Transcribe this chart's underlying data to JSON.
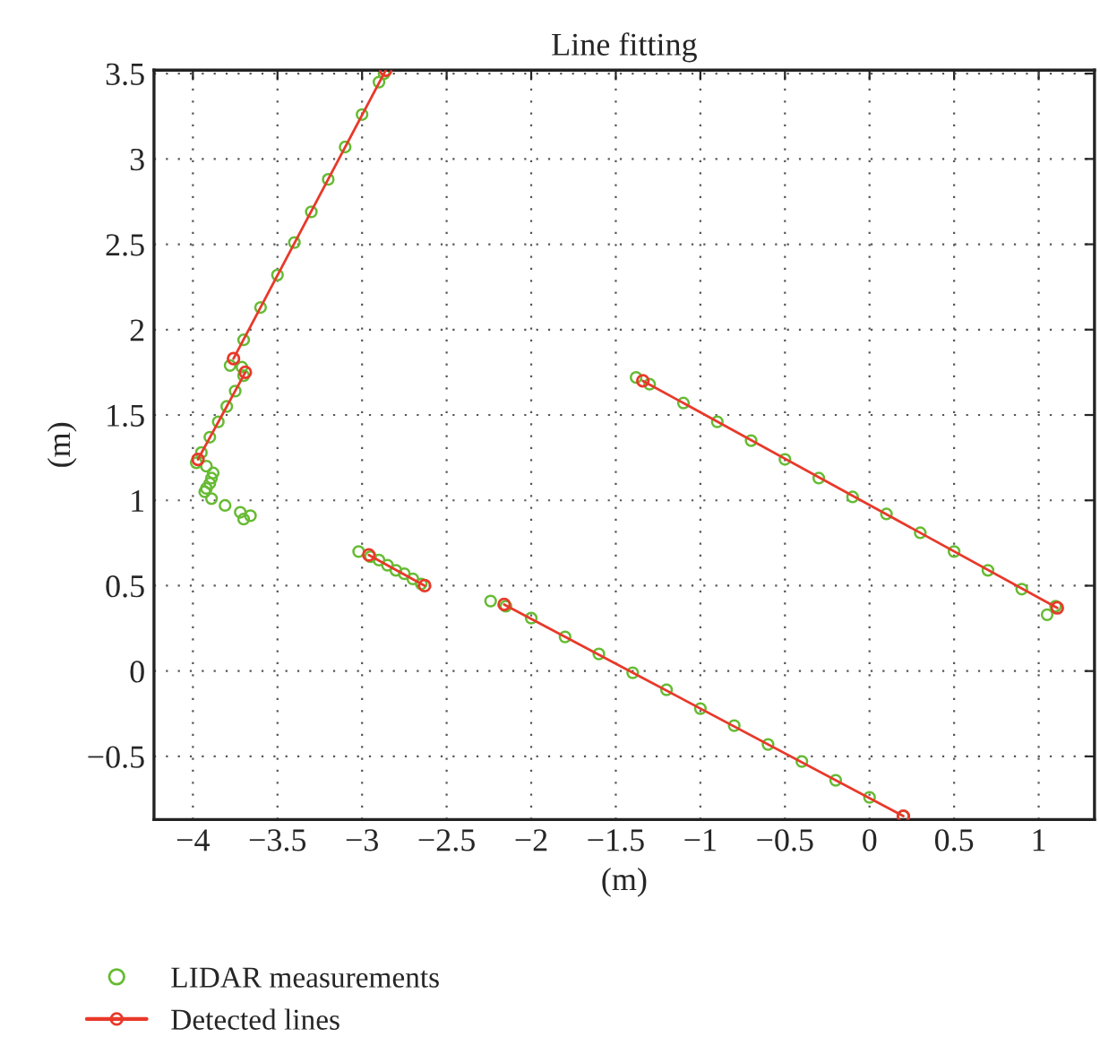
{
  "chart_data": {
    "type": "scatter",
    "title": "Line fitting",
    "xlabel": "(m)",
    "ylabel": "(m)",
    "series": [
      {
        "name": "LIDAR measurements",
        "color": "#66bb33",
        "marker": "circle",
        "x": [
          -3.78,
          -3.7,
          -3.6,
          -3.5,
          -3.4,
          -3.3,
          -3.2,
          -3.1,
          -3.0,
          -2.9,
          -2.87,
          -3.71,
          -3.98,
          -3.95,
          -3.9,
          -3.85,
          -3.8,
          -3.75,
          -3.7,
          -3.92,
          -3.88,
          -3.89,
          -3.9,
          -3.92,
          -3.93,
          -3.89,
          -3.81,
          -3.72,
          -3.7,
          -3.66,
          -3.02,
          -2.95,
          -2.9,
          -2.85,
          -2.8,
          -2.75,
          -2.7,
          -2.65,
          -2.24,
          -2.15,
          -2.0,
          -1.8,
          -1.6,
          -1.4,
          -1.2,
          -1.0,
          -0.8,
          -0.6,
          -0.4,
          -0.2,
          0.0,
          0.2,
          -1.38,
          -1.3,
          -1.1,
          -0.9,
          -0.7,
          -0.5,
          -0.3,
          -0.1,
          0.1,
          0.3,
          0.5,
          0.7,
          0.9,
          1.1,
          1.05
        ],
        "values": [
          1.79,
          1.94,
          2.13,
          2.32,
          2.51,
          2.69,
          2.88,
          3.07,
          3.26,
          3.45,
          3.5,
          1.78,
          1.22,
          1.28,
          1.37,
          1.46,
          1.55,
          1.64,
          1.73,
          1.2,
          1.16,
          1.13,
          1.1,
          1.07,
          1.05,
          1.01,
          0.97,
          0.93,
          0.89,
          0.91,
          0.7,
          0.67,
          0.65,
          0.62,
          0.59,
          0.57,
          0.54,
          0.51,
          0.41,
          0.38,
          0.31,
          0.2,
          0.1,
          -0.01,
          -0.11,
          -0.22,
          -0.32,
          -0.43,
          -0.53,
          -0.64,
          -0.74,
          -0.85,
          1.72,
          1.68,
          1.57,
          1.46,
          1.35,
          1.24,
          1.13,
          1.02,
          0.92,
          0.81,
          0.7,
          0.59,
          0.48,
          0.38,
          0.33
        ]
      },
      {
        "name": "Detected lines",
        "type": "line",
        "color": "#e8392a",
        "marker": "circle",
        "line_style": "solid",
        "x": [
          -3.76,
          -2.86,
          null,
          -3.97,
          -3.69,
          null,
          -2.96,
          -2.63,
          null,
          -2.16,
          0.2,
          null,
          -1.34,
          1.11
        ],
        "values": [
          1.83,
          3.52,
          null,
          1.24,
          1.75,
          null,
          0.68,
          0.5,
          null,
          0.39,
          -0.85,
          null,
          1.7,
          0.37
        ]
      }
    ],
    "xlim": [
      -4.23,
      1.33
    ],
    "xticks": [
      -4,
      -3.5,
      -3,
      -2.5,
      -2,
      -1.5,
      -1,
      -0.5,
      0,
      0.5,
      1
    ],
    "ylim": [
      -0.87,
      3.52
    ],
    "yticks": [
      -0.5,
      0,
      0.5,
      1,
      1.5,
      2,
      2.5,
      3,
      3.5
    ],
    "grid": true,
    "legend": "bottom left"
  }
}
